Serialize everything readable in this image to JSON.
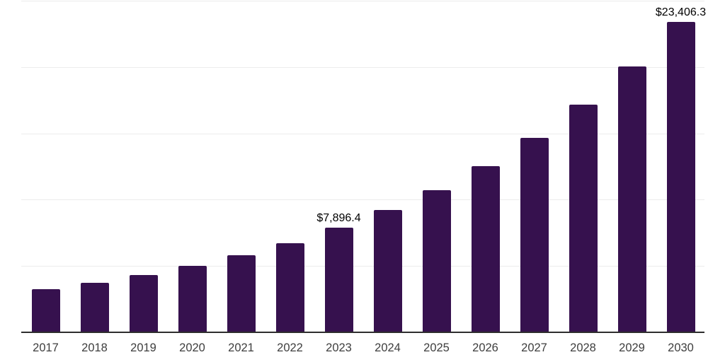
{
  "chart_data": {
    "type": "bar",
    "title": "",
    "xlabel": "",
    "ylabel": "",
    "categories": [
      "2017",
      "2018",
      "2019",
      "2020",
      "2021",
      "2022",
      "2023",
      "2024",
      "2025",
      "2026",
      "2027",
      "2028",
      "2029",
      "2030"
    ],
    "values": [
      3250,
      3730,
      4320,
      5010,
      5810,
      6720,
      7896.4,
      9220,
      10710,
      12530,
      14660,
      17160,
      20040,
      23406.3
    ],
    "data_labels": [
      {
        "category": "2023",
        "text": "$7,896.4"
      },
      {
        "category": "2030",
        "text": "$23,406.3"
      }
    ],
    "ylim": [
      0,
      25000
    ],
    "gridline_values": [
      5000,
      10000,
      15000,
      20000,
      25000
    ],
    "grid": "on",
    "legend": "none",
    "y_axis_tick_labels": "none"
  },
  "colors": {
    "bar": "#36114e",
    "gridline": "#ececec",
    "axis_line": "#2e2e2e",
    "x_label_text": "#3e3e3e",
    "data_label_text": "#000000",
    "background": "#ffffff"
  }
}
